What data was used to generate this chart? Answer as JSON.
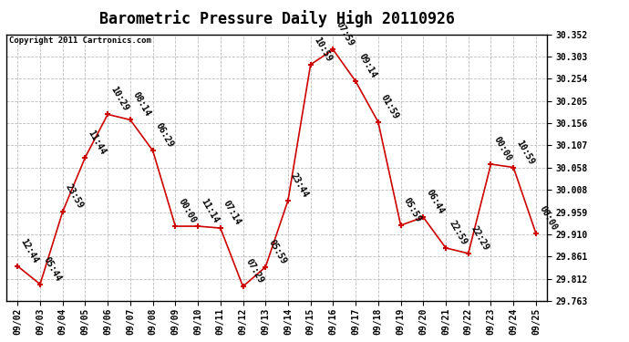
{
  "title": "Barometric Pressure Daily High 20110926",
  "copyright": "Copyright 2011 Cartronics.com",
  "x_labels": [
    "09/02",
    "09/03",
    "09/04",
    "09/05",
    "09/06",
    "09/07",
    "09/08",
    "09/09",
    "09/10",
    "09/11",
    "09/12",
    "09/13",
    "09/14",
    "09/15",
    "09/16",
    "09/17",
    "09/18",
    "09/19",
    "09/20",
    "09/21",
    "09/22",
    "09/23",
    "09/24",
    "09/25"
  ],
  "y_values": [
    29.84,
    29.8,
    29.96,
    30.08,
    30.175,
    30.163,
    30.095,
    29.928,
    29.928,
    29.924,
    29.795,
    29.838,
    29.985,
    30.285,
    30.318,
    30.248,
    30.158,
    29.93,
    29.948,
    29.88,
    29.868,
    30.065,
    30.058,
    29.912
  ],
  "time_labels": [
    "12:44",
    "05:44",
    "23:59",
    "11:44",
    "10:29",
    "08:14",
    "06:29",
    "00:00",
    "11:14",
    "07:14",
    "07:29",
    "05:59",
    "23:44",
    "10:59",
    "07:59",
    "09:14",
    "01:59",
    "05:59",
    "06:44",
    "22:59",
    "22:29",
    "00:00",
    "10:59",
    "00:00"
  ],
  "y_min": 29.763,
  "y_max": 30.352,
  "y_ticks": [
    29.763,
    29.812,
    29.861,
    29.91,
    29.959,
    30.008,
    30.058,
    30.107,
    30.156,
    30.205,
    30.254,
    30.303,
    30.352
  ],
  "line_color": "#cc0000",
  "marker_color": "#cc0000",
  "bg_color": "#ffffff",
  "grid_color": "#bbbbbb",
  "title_fontsize": 12,
  "tick_fontsize": 7,
  "annotation_fontsize": 7
}
